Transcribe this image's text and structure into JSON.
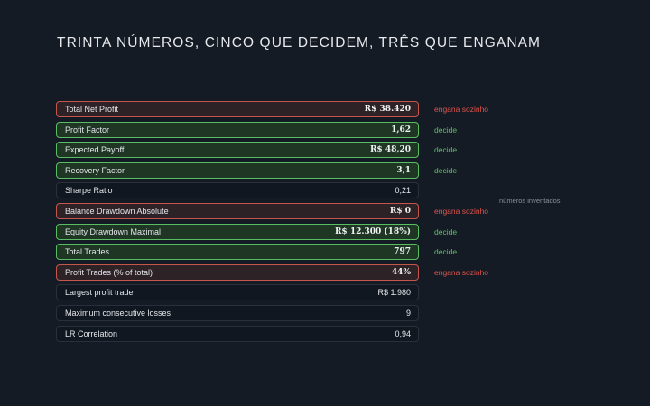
{
  "title": "TRINTA NÚMEROS, CINCO QUE DECIDEM, TRÊS QUE ENGANAM",
  "side_note": "números inventados",
  "colors": {
    "red": "#c5564d",
    "green": "#5bbd63",
    "background": "#151b25"
  },
  "rows": [
    {
      "label": "Total Net Profit",
      "value": "R$ 38.420",
      "status": "red",
      "tag": "engana sozinho"
    },
    {
      "label": "Profit Factor",
      "value": "1,62",
      "status": "green",
      "tag": "decide"
    },
    {
      "label": "Expected Payoff",
      "value": "R$ 48,20",
      "status": "green",
      "tag": "decide"
    },
    {
      "label": "Recovery Factor",
      "value": "3,1",
      "status": "green",
      "tag": "decide"
    },
    {
      "label": "Sharpe Ratio",
      "value": "0,21",
      "status": "neutral",
      "tag": ""
    },
    {
      "label": "Balance Drawdown Absolute",
      "value": "R$ 0",
      "status": "red",
      "tag": "engana sozinho"
    },
    {
      "label": "Equity Drawdown Maximal",
      "value": "R$ 12.300 (18%)",
      "status": "green",
      "tag": "decide"
    },
    {
      "label": "Total Trades",
      "value": "797",
      "status": "green",
      "tag": "decide"
    },
    {
      "label": "Profit Trades (% of total)",
      "value": "44%",
      "status": "red",
      "tag": "engana sozinho"
    },
    {
      "label": "Largest profit trade",
      "value": "R$ 1.980",
      "status": "neutral",
      "tag": ""
    },
    {
      "label": "Maximum consecutive losses",
      "value": "9",
      "status": "neutral",
      "tag": ""
    },
    {
      "label": "LR Correlation",
      "value": "0,94",
      "status": "neutral",
      "tag": ""
    }
  ]
}
